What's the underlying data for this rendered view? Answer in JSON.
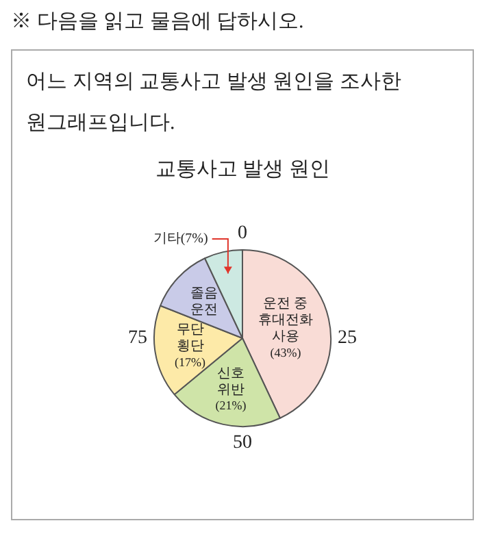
{
  "chart_data": {
    "type": "pie",
    "title": "교통사고 발생 원인",
    "subtitle": "어느 지역의 교통사고 발생 원인을 조사한 원그래프입니다.",
    "annotations": [
      "※ 다음을 읽고 물음에 답하시오.",
      "0",
      "25",
      "50",
      "75"
    ],
    "categories": [
      "운전 중 휴대전화 사용",
      "신호 위반",
      "무단 횡단",
      "졸음 운전",
      "기타"
    ],
    "values": [
      43,
      21,
      17,
      12,
      7
    ],
    "value_labels": [
      "(43%)",
      "(21%)",
      "(17%)",
      null,
      "(7%)"
    ],
    "colors": [
      "#f9dcd6",
      "#cfe4a8",
      "#fdeaa8",
      "#c9cbe8",
      "#cde9e2"
    ],
    "legend": false
  }
}
